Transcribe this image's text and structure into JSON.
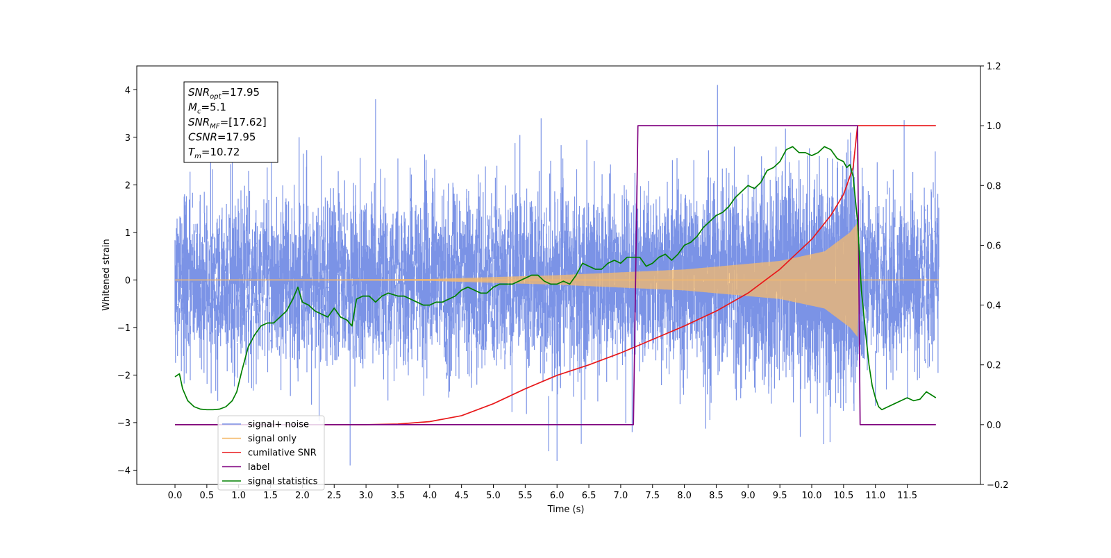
{
  "chart_data": {
    "type": "line",
    "xlabel": "Time (s)",
    "ylabel": "Whitened strain",
    "xlim": [
      -0.6,
      12.65
    ],
    "ylim": [
      -4.3,
      4.5
    ],
    "y2lim": [
      -0.2,
      1.2
    ],
    "grid": false,
    "legend_position": "lower-left",
    "x_ticks": [
      "0.0",
      "0.5",
      "1.0",
      "1.5",
      "2.0",
      "2.5",
      "3.0",
      "3.5",
      "4.0",
      "4.5",
      "5.0",
      "5.5",
      "6.0",
      "6.5",
      "7.0",
      "7.5",
      "8.0",
      "8.5",
      "9.0",
      "9.5",
      "10.0",
      "10.5",
      "11.0",
      "11.5"
    ],
    "y_ticks": [
      "4",
      "3",
      "2",
      "1",
      "0",
      "−1",
      "−2",
      "−3",
      "−4"
    ],
    "y2_ticks": [
      "1.2",
      "1.0",
      "0.8",
      "0.6",
      "0.4",
      "0.2",
      "0.0",
      "−0.2"
    ],
    "annotation": {
      "lines": [
        {
          "symbol": "SNR",
          "sub": "opt",
          "text": "=17.95"
        },
        {
          "symbol": "M",
          "sub": "c",
          "text": "=5.1"
        },
        {
          "symbol": "SNR",
          "sub": "MF",
          "text": "=[17.62]"
        },
        {
          "symbol": "CSNR",
          "sub": "",
          "text": "=17.95"
        },
        {
          "symbol": "T",
          "sub": "m",
          "text": "=10.72"
        }
      ]
    },
    "series": [
      {
        "name": "signal+ noise",
        "color": "#7b93e6",
        "axis": "left",
        "x_range": [
          0.0,
          12.0
        ],
        "sigma": 0.9,
        "peak_spikes": [
          [
            0.15,
            1.8
          ],
          [
            0.9,
            3.3
          ],
          [
            1.95,
            3.0
          ],
          [
            2.75,
            -3.9
          ],
          [
            3.15,
            3.8
          ],
          [
            5.75,
            3.4
          ],
          [
            6.38,
            -3.45
          ],
          [
            7.18,
            -3.2
          ],
          [
            8.52,
            4.1
          ],
          [
            9.82,
            -3.3
          ],
          [
            10.66,
            -2.6
          ]
        ]
      },
      {
        "name": "signal only",
        "color": "#f5b96b",
        "axis": "left",
        "x_range": [
          0.0,
          12.0
        ],
        "merger_time": 10.72,
        "envelope": [
          [
            0.0,
            0.0
          ],
          [
            4.0,
            0.02
          ],
          [
            6.0,
            0.1
          ],
          [
            8.0,
            0.22
          ],
          [
            9.5,
            0.4
          ],
          [
            10.2,
            0.6
          ],
          [
            10.6,
            1.0
          ],
          [
            10.72,
            1.2
          ],
          [
            10.75,
            0.0
          ],
          [
            12.0,
            0.0
          ]
        ]
      },
      {
        "name": "cumilative SNR",
        "color": "#e8191b",
        "axis": "right",
        "x": [
          0.0,
          3.0,
          3.5,
          4.0,
          4.5,
          5.0,
          5.5,
          6.0,
          6.5,
          7.0,
          7.5,
          8.0,
          8.5,
          9.0,
          9.5,
          10.0,
          10.3,
          10.5,
          10.65,
          10.72,
          11.0,
          11.5,
          11.95
        ],
        "values": [
          0.0,
          0.0,
          0.002,
          0.01,
          0.03,
          0.07,
          0.12,
          0.165,
          0.2,
          0.24,
          0.285,
          0.33,
          0.38,
          0.44,
          0.52,
          0.62,
          0.7,
          0.77,
          0.86,
          1.0,
          1.0,
          1.0,
          1.0
        ]
      },
      {
        "name": "label",
        "color": "#800080",
        "axis": "right",
        "x": [
          0.0,
          7.2,
          7.27,
          10.72,
          10.76,
          11.95
        ],
        "values": [
          0.0,
          0.0,
          1.0,
          1.0,
          0.0,
          0.0
        ]
      },
      {
        "name": "signal statistics",
        "color": "#008000",
        "axis": "right",
        "x": [
          0.0,
          0.07,
          0.12,
          0.2,
          0.3,
          0.4,
          0.5,
          0.6,
          0.7,
          0.8,
          0.9,
          0.97,
          1.05,
          1.15,
          1.25,
          1.35,
          1.45,
          1.55,
          1.65,
          1.75,
          1.85,
          1.93,
          2.0,
          2.1,
          2.2,
          2.3,
          2.4,
          2.5,
          2.6,
          2.7,
          2.78,
          2.85,
          2.95,
          3.05,
          3.15,
          3.25,
          3.35,
          3.5,
          3.6,
          3.7,
          3.8,
          3.9,
          4.0,
          4.1,
          4.2,
          4.3,
          4.4,
          4.5,
          4.6,
          4.7,
          4.8,
          4.9,
          5.0,
          5.1,
          5.2,
          5.3,
          5.4,
          5.5,
          5.6,
          5.7,
          5.8,
          5.9,
          6.0,
          6.1,
          6.2,
          6.3,
          6.4,
          6.5,
          6.6,
          6.7,
          6.8,
          6.9,
          7.0,
          7.1,
          7.2,
          7.3,
          7.4,
          7.5,
          7.6,
          7.7,
          7.8,
          7.9,
          8.0,
          8.1,
          8.2,
          8.3,
          8.4,
          8.5,
          8.6,
          8.7,
          8.8,
          8.9,
          9.0,
          9.1,
          9.2,
          9.3,
          9.4,
          9.5,
          9.6,
          9.7,
          9.8,
          9.9,
          10.0,
          10.1,
          10.2,
          10.3,
          10.4,
          10.5,
          10.55,
          10.6,
          10.65,
          10.72,
          10.78,
          10.85,
          10.9,
          10.95,
          11.0,
          11.05,
          11.1,
          11.2,
          11.3,
          11.4,
          11.5,
          11.6,
          11.7,
          11.8,
          11.95
        ],
        "values": [
          0.16,
          0.17,
          0.12,
          0.08,
          0.06,
          0.052,
          0.05,
          0.05,
          0.052,
          0.06,
          0.08,
          0.11,
          0.18,
          0.26,
          0.3,
          0.33,
          0.34,
          0.34,
          0.36,
          0.38,
          0.42,
          0.46,
          0.41,
          0.4,
          0.38,
          0.37,
          0.36,
          0.39,
          0.36,
          0.35,
          0.33,
          0.42,
          0.43,
          0.43,
          0.41,
          0.43,
          0.44,
          0.43,
          0.43,
          0.42,
          0.41,
          0.4,
          0.4,
          0.41,
          0.41,
          0.42,
          0.43,
          0.45,
          0.46,
          0.45,
          0.44,
          0.44,
          0.46,
          0.47,
          0.47,
          0.47,
          0.48,
          0.49,
          0.5,
          0.5,
          0.48,
          0.47,
          0.47,
          0.48,
          0.47,
          0.5,
          0.54,
          0.53,
          0.52,
          0.52,
          0.54,
          0.55,
          0.54,
          0.56,
          0.56,
          0.56,
          0.53,
          0.54,
          0.56,
          0.57,
          0.55,
          0.57,
          0.6,
          0.61,
          0.63,
          0.66,
          0.68,
          0.7,
          0.71,
          0.73,
          0.76,
          0.78,
          0.8,
          0.79,
          0.81,
          0.85,
          0.86,
          0.88,
          0.92,
          0.93,
          0.91,
          0.91,
          0.9,
          0.91,
          0.93,
          0.92,
          0.89,
          0.88,
          0.86,
          0.87,
          0.83,
          0.68,
          0.45,
          0.3,
          0.2,
          0.13,
          0.09,
          0.06,
          0.05,
          0.06,
          0.07,
          0.08,
          0.09,
          0.08,
          0.085,
          0.11,
          0.09
        ]
      }
    ]
  }
}
